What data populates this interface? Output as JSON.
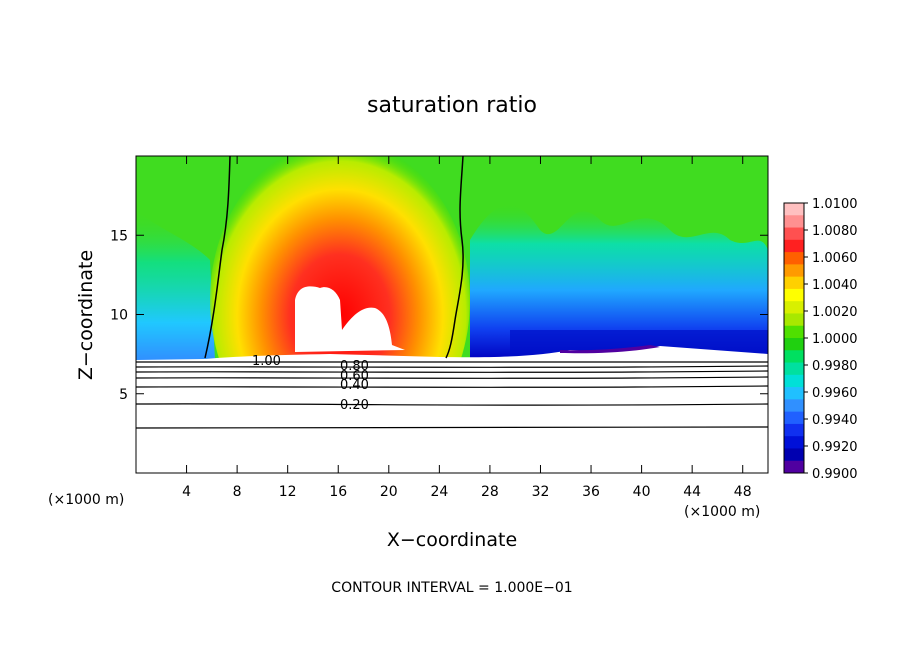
{
  "chart_data": {
    "type": "heatmap",
    "title": "saturation ratio",
    "xlabel": "X−coordinate",
    "ylabel": "Z−coordinate",
    "x_unit_left": "(×1000 m)",
    "x_unit_right": "(×1000 m)",
    "xlim": [
      0,
      50
    ],
    "ylim": [
      0,
      20
    ],
    "xticks": [
      4,
      8,
      12,
      16,
      20,
      24,
      28,
      32,
      36,
      40,
      44,
      48
    ],
    "yticks": [
      5,
      10,
      15
    ],
    "colorbar": {
      "labels": [
        "1.0100",
        "1.0080",
        "1.0060",
        "1.0040",
        "1.0020",
        "1.0000",
        "0.9980",
        "0.9960",
        "0.9940",
        "0.9920",
        "0.9900"
      ],
      "colors": [
        "#ffc0c0",
        "#ff9090",
        "#ff5050",
        "#ff2020",
        "#ff6000",
        "#ff9a00",
        "#ffd000",
        "#ffff00",
        "#d8f000",
        "#a8e800",
        "#50e000",
        "#20d010",
        "#00e060",
        "#00e0a0",
        "#00e0d8",
        "#20c0ff",
        "#3090ff",
        "#2060ff",
        "#1030f0",
        "#0010d8",
        "#0000b0",
        "#5000a0"
      ]
    },
    "contour_labels": [
      "1.00",
      "0.80",
      "0.60",
      "0.40",
      "0.20"
    ],
    "contour_levels_below": [
      0.2,
      0.4,
      0.6,
      0.8,
      1.0
    ],
    "footer": "CONTOUR INTERVAL = 1.000E−01"
  }
}
